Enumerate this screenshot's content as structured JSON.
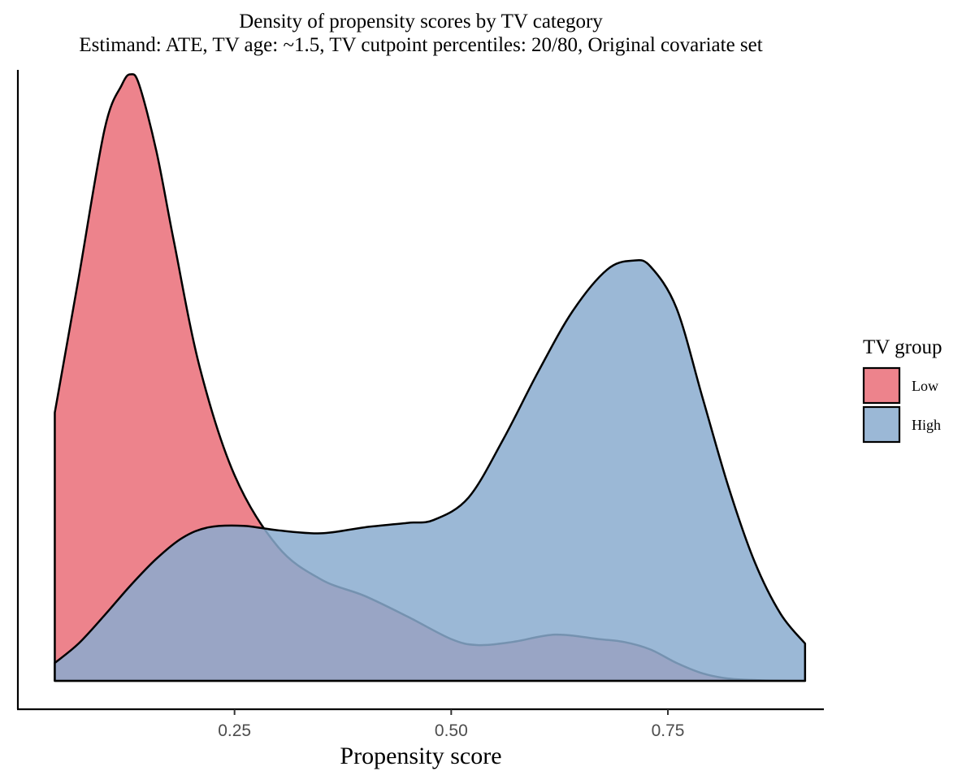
{
  "chart_data": {
    "type": "area",
    "subtype": "density",
    "title": "Density of propensity scores by TV category",
    "subtitle": "Estimand: ATE, TV age: ~1.5, TV cutpoint percentiles: 20/80, Original covariate set",
    "xlabel": "Propensity score",
    "ylabel": "",
    "xlim": [
      0.0,
      0.93
    ],
    "ylim": [
      0,
      4.1
    ],
    "x_ticks": [
      0.25,
      0.5,
      0.75
    ],
    "x_tick_labels": [
      "0.25",
      "0.50",
      "0.75"
    ],
    "y_ticks_shown": false,
    "grid": false,
    "legend": {
      "title": "TV group",
      "position": "right"
    },
    "series": [
      {
        "name": "Low",
        "color": "#E8646F",
        "opacity": 0.8,
        "x": [
          0.0426,
          0.07,
          0.1,
          0.12,
          0.13,
          0.14,
          0.16,
          0.18,
          0.21,
          0.25,
          0.3,
          0.35,
          0.4,
          0.45,
          0.5,
          0.53,
          0.57,
          0.62,
          0.67,
          0.7,
          0.73,
          0.76,
          0.79,
          0.82,
          0.86,
          0.9,
          0.9083
        ],
        "y": [
          1.8,
          2.7,
          3.7,
          4.0,
          4.07,
          4.0,
          3.55,
          2.95,
          2.1,
          1.38,
          0.9,
          0.68,
          0.57,
          0.43,
          0.28,
          0.24,
          0.26,
          0.31,
          0.28,
          0.26,
          0.21,
          0.12,
          0.05,
          0.015,
          0.003,
          0.0,
          0.0
        ]
      },
      {
        "name": "High",
        "color": "#8AABCF",
        "opacity": 0.85,
        "x": [
          0.0426,
          0.07,
          0.1,
          0.13,
          0.16,
          0.19,
          0.22,
          0.26,
          0.3,
          0.35,
          0.4,
          0.45,
          0.48,
          0.52,
          0.56,
          0.6,
          0.64,
          0.68,
          0.71,
          0.73,
          0.76,
          0.79,
          0.82,
          0.85,
          0.88,
          0.9083
        ],
        "y": [
          0.12,
          0.25,
          0.44,
          0.64,
          0.82,
          0.96,
          1.03,
          1.04,
          1.01,
          0.99,
          1.03,
          1.06,
          1.08,
          1.23,
          1.62,
          2.07,
          2.48,
          2.76,
          2.82,
          2.78,
          2.5,
          1.9,
          1.3,
          0.8,
          0.45,
          0.25
        ]
      }
    ]
  }
}
